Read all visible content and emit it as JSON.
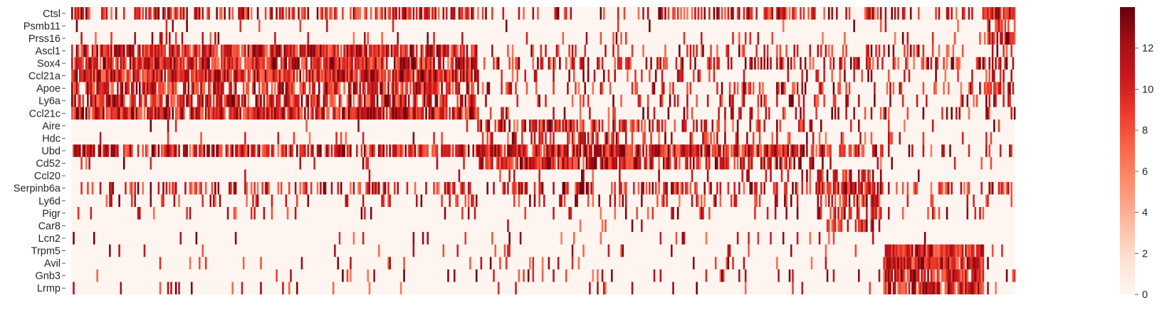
{
  "chart_data": {
    "type": "heatmap",
    "title": "",
    "xlabel": "",
    "ylabel": "",
    "genes": [
      "Ctsl",
      "Psmb11",
      "Prss16",
      "Ascl1",
      "Sox4",
      "Ccl21a",
      "Apoe",
      "Ly6a",
      "Ccl21c",
      "Aire",
      "Hdc",
      "Ubd",
      "Cd52",
      "Ccl20",
      "Serpinb6a",
      "Ly6d",
      "Pigr",
      "Car8",
      "Lcn2",
      "Trpm5",
      "Avil",
      "Gnb3",
      "Lrmp"
    ],
    "x_tick_labels": [],
    "n_cells": 600,
    "value_range": [
      0,
      14
    ],
    "colormap": "Reds",
    "colorbar": {
      "ticks": [
        0,
        2,
        4,
        6,
        8,
        10,
        12
      ],
      "labels": [
        "0",
        "2",
        "4",
        "6",
        "8",
        "10",
        "12"
      ]
    },
    "colors": {
      "low": "#fff5f0",
      "mid": "#fb6a4a",
      "high": "#67000d"
    },
    "cell_groups": [
      {
        "from": 0.0,
        "to": 0.43,
        "profile": {
          "Ctsl": 0.55,
          "Psmb11": 0.03,
          "Prss16": 0.1,
          "Ascl1": 0.85,
          "Sox4": 0.85,
          "Ccl21a": 0.92,
          "Apoe": 0.7,
          "Ly6a": 0.75,
          "Ccl21c": 0.88,
          "Aire": 0.05,
          "Hdc": 0.05,
          "Ubd": 0.7,
          "Cd52": 0.05,
          "Ccl20": 0.02,
          "Serpinb6a": 0.4,
          "Ly6d": 0.15,
          "Pigr": 0.08,
          "Car8": 0.01,
          "Lcn2": 0.04,
          "Trpm5": 0.03,
          "Avil": 0.05,
          "Gnb3": 0.05,
          "Lrmp": 0.05
        }
      },
      {
        "from": 0.43,
        "to": 0.6,
        "profile": {
          "Ctsl": 0.15,
          "Psmb11": 0.02,
          "Prss16": 0.06,
          "Ascl1": 0.2,
          "Sox4": 0.4,
          "Ccl21a": 0.2,
          "Apoe": 0.2,
          "Ly6a": 0.15,
          "Ccl21c": 0.2,
          "Aire": 0.7,
          "Hdc": 0.5,
          "Ubd": 0.92,
          "Cd52": 0.85,
          "Ccl20": 0.05,
          "Serpinb6a": 0.45,
          "Ly6d": 0.2,
          "Pigr": 0.05,
          "Car8": 0.03,
          "Lcn2": 0.08,
          "Trpm5": 0.08,
          "Avil": 0.1,
          "Gnb3": 0.08,
          "Lrmp": 0.08
        }
      },
      {
        "from": 0.6,
        "to": 0.79,
        "profile": {
          "Ctsl": 0.45,
          "Psmb11": 0.03,
          "Prss16": 0.05,
          "Ascl1": 0.2,
          "Sox4": 0.3,
          "Ccl21a": 0.2,
          "Apoe": 0.25,
          "Ly6a": 0.2,
          "Ccl21c": 0.2,
          "Aire": 0.35,
          "Hdc": 0.25,
          "Ubd": 0.85,
          "Cd52": 0.55,
          "Ccl20": 0.1,
          "Serpinb6a": 0.4,
          "Ly6d": 0.2,
          "Pigr": 0.12,
          "Car8": 0.02,
          "Lcn2": 0.05,
          "Trpm5": 0.05,
          "Avil": 0.08,
          "Gnb3": 0.08,
          "Lrmp": 0.08
        }
      },
      {
        "from": 0.79,
        "to": 0.86,
        "profile": {
          "Ctsl": 0.35,
          "Psmb11": 0.05,
          "Prss16": 0.05,
          "Ascl1": 0.15,
          "Sox4": 0.35,
          "Ccl21a": 0.2,
          "Apoe": 0.25,
          "Ly6a": 0.2,
          "Ccl21c": 0.2,
          "Aire": 0.1,
          "Hdc": 0.1,
          "Ubd": 0.6,
          "Cd52": 0.2,
          "Ccl20": 0.55,
          "Serpinb6a": 0.7,
          "Ly6d": 0.55,
          "Pigr": 0.55,
          "Car8": 0.45,
          "Lcn2": 0.05,
          "Trpm5": 0.04,
          "Avil": 0.05,
          "Gnb3": 0.06,
          "Lrmp": 0.06
        }
      },
      {
        "from": 0.86,
        "to": 0.967,
        "profile": {
          "Ctsl": 0.35,
          "Psmb11": 0.03,
          "Prss16": 0.1,
          "Ascl1": 0.3,
          "Sox4": 0.35,
          "Ccl21a": 0.2,
          "Apoe": 0.3,
          "Ly6a": 0.2,
          "Ccl21c": 0.2,
          "Aire": 0.05,
          "Hdc": 0.1,
          "Ubd": 0.25,
          "Cd52": 0.05,
          "Ccl20": 0.02,
          "Serpinb6a": 0.35,
          "Ly6d": 0.1,
          "Pigr": 0.1,
          "Car8": 0.01,
          "Lcn2": 0.03,
          "Trpm5": 0.92,
          "Avil": 0.92,
          "Gnb3": 0.85,
          "Lrmp": 0.92
        }
      },
      {
        "from": 0.967,
        "to": 1.0,
        "profile": {
          "Ctsl": 0.95,
          "Psmb11": 0.6,
          "Prss16": 0.8,
          "Ascl1": 0.3,
          "Sox4": 0.5,
          "Ccl21a": 0.3,
          "Apoe": 0.7,
          "Ly6a": 0.4,
          "Ccl21c": 0.3,
          "Aire": 0.1,
          "Hdc": 0.2,
          "Ubd": 0.3,
          "Cd52": 0.1,
          "Ccl20": 0.05,
          "Serpinb6a": 0.5,
          "Ly6d": 0.15,
          "Pigr": 0.1,
          "Car8": 0.02,
          "Lcn2": 0.05,
          "Trpm5": 0.1,
          "Avil": 0.1,
          "Gnb3": 0.1,
          "Lrmp": 0.1
        }
      }
    ]
  }
}
